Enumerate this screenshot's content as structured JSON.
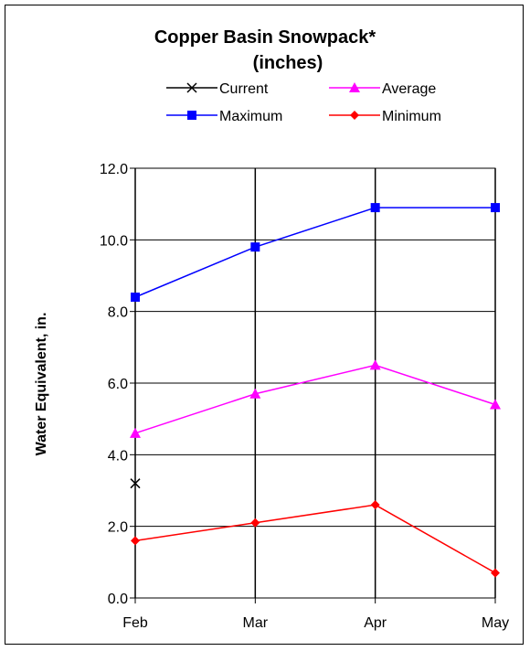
{
  "chart_data": {
    "type": "line",
    "title": "Copper Basin Snowpack*",
    "subtitle": "(inches)",
    "ylabel": "Water Equivalent, in.",
    "xlabel": "",
    "categories": [
      "Feb",
      "Mar",
      "Apr",
      "May"
    ],
    "ylim": [
      0,
      12
    ],
    "yticks": [
      "0.0",
      "2.0",
      "4.0",
      "6.0",
      "8.0",
      "10.0",
      "12.0"
    ],
    "grid": true,
    "legend_position": "top",
    "series": [
      {
        "name": "Current",
        "values": [
          3.2,
          null,
          null,
          null
        ],
        "color": "#000000",
        "marker": "x"
      },
      {
        "name": "Average",
        "values": [
          4.6,
          5.7,
          6.5,
          5.4
        ],
        "color": "#ff00ff",
        "marker": "triangle"
      },
      {
        "name": "Maximum",
        "values": [
          8.4,
          9.8,
          10.9,
          10.9
        ],
        "color": "#0000ff",
        "marker": "square"
      },
      {
        "name": "Minimum",
        "values": [
          1.6,
          2.1,
          2.6,
          0.7
        ],
        "color": "#ff0000",
        "marker": "diamond"
      }
    ]
  }
}
